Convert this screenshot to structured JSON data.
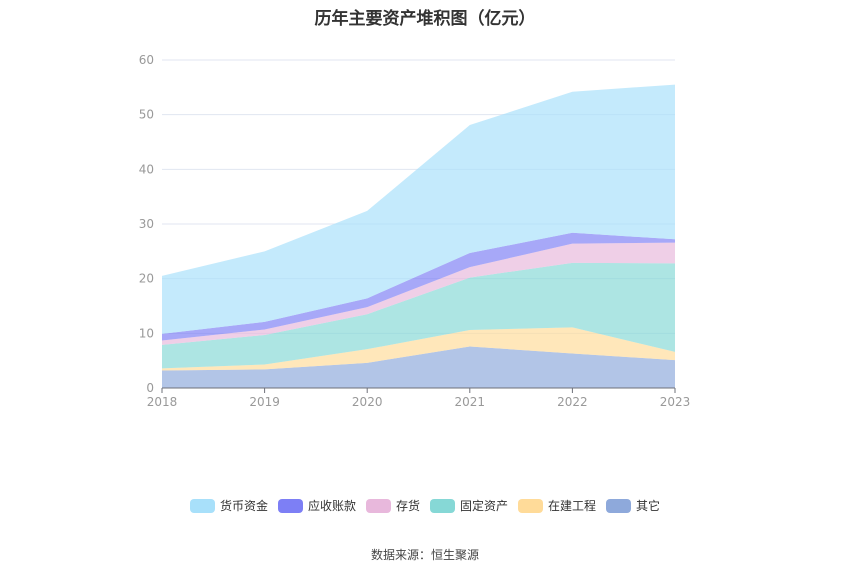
{
  "chart_data": {
    "type": "area",
    "stacked": true,
    "title": "历年主要资产堆积图（亿元）",
    "xlabel": "",
    "ylabel": "",
    "ylim": [
      0,
      60
    ],
    "yticks": [
      0,
      10,
      20,
      30,
      40,
      50,
      60
    ],
    "categories": [
      "2018",
      "2019",
      "2020",
      "2021",
      "2022",
      "2023"
    ],
    "grid": true,
    "legend_position": "bottom",
    "series": [
      {
        "name": "其它",
        "color": "#8EA9DB",
        "values": [
          3.2,
          3.4,
          4.6,
          7.6,
          6.3,
          5.1
        ]
      },
      {
        "name": "在建工程",
        "color": "#FFDB99",
        "values": [
          0.4,
          0.9,
          2.5,
          3.0,
          4.8,
          1.5
        ]
      },
      {
        "name": "固定资产",
        "color": "#86D8D6",
        "values": [
          4.3,
          5.4,
          6.4,
          9.6,
          11.8,
          16.2
        ]
      },
      {
        "name": "存货",
        "color": "#E8B8DC",
        "values": [
          0.8,
          1.0,
          1.3,
          1.9,
          3.5,
          3.8
        ]
      },
      {
        "name": "应收账款",
        "color": "#7D7FF5",
        "values": [
          1.2,
          1.4,
          1.6,
          2.6,
          2.0,
          0.6
        ]
      },
      {
        "name": "货币资金",
        "color": "#A8E0FA",
        "values": [
          10.6,
          12.9,
          16.0,
          23.4,
          25.8,
          28.3
        ]
      }
    ],
    "legend_order": [
      "货币资金",
      "应收账款",
      "存货",
      "固定资产",
      "在建工程",
      "其它"
    ]
  },
  "source": "数据来源：恒生聚源"
}
